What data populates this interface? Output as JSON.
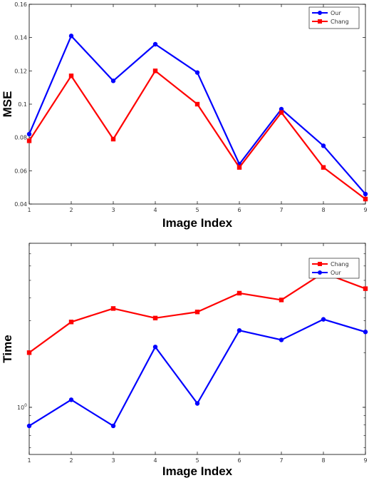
{
  "chart_data": [
    {
      "type": "line",
      "xlabel": "Image Index",
      "ylabel": "MSE",
      "x": [
        1,
        2,
        3,
        4,
        5,
        6,
        7,
        8,
        9
      ],
      "xlim": [
        1,
        9
      ],
      "ylim": [
        0.04,
        0.16
      ],
      "yscale": "linear",
      "xticks": [
        "1",
        "2",
        "3",
        "4",
        "5",
        "6",
        "7",
        "8",
        "9"
      ],
      "yticks": [
        {
          "value": 0.04,
          "label": "0.04"
        },
        {
          "value": 0.06,
          "label": "0.06"
        },
        {
          "value": 0.08,
          "label": "0.08"
        },
        {
          "value": 0.1,
          "label": "0.1"
        },
        {
          "value": 0.12,
          "label": "0.12"
        },
        {
          "value": 0.14,
          "label": "0.14"
        },
        {
          "value": 0.16,
          "label": "0.16"
        }
      ],
      "grid": false,
      "legend": "top-right",
      "series": [
        {
          "name": "Our",
          "color": "#0000ff",
          "marker": "circle",
          "values": [
            0.082,
            0.141,
            0.114,
            0.136,
            0.119,
            0.064,
            0.097,
            0.075,
            0.046
          ]
        },
        {
          "name": "Chang",
          "color": "#ff0000",
          "marker": "square",
          "values": [
            0.078,
            0.117,
            0.079,
            0.12,
            0.1,
            0.062,
            0.095,
            0.062,
            0.043
          ]
        }
      ]
    },
    {
      "type": "line",
      "xlabel": "Image Index",
      "ylabel": "Time",
      "x": [
        1,
        2,
        3,
        4,
        5,
        6,
        7,
        8,
        9
      ],
      "xlim": [
        1,
        9
      ],
      "ylim": [
        0.55,
        8
      ],
      "yscale": "log",
      "xticks": [
        "1",
        "2",
        "3",
        "4",
        "5",
        "6",
        "7",
        "8",
        "9"
      ],
      "yticks": [
        {
          "value": 1,
          "label": "10^0"
        }
      ],
      "grid": false,
      "legend": "top-right",
      "series": [
        {
          "name": "Chang",
          "color": "#ff0000",
          "marker": "square",
          "values": [
            2.0,
            2.95,
            3.5,
            3.1,
            3.35,
            4.25,
            3.9,
            5.5,
            4.5
          ]
        },
        {
          "name": "Our",
          "color": "#0000ff",
          "marker": "circle",
          "values": [
            0.79,
            1.1,
            0.79,
            2.15,
            1.05,
            2.65,
            2.35,
            3.05,
            2.6
          ]
        }
      ]
    }
  ]
}
